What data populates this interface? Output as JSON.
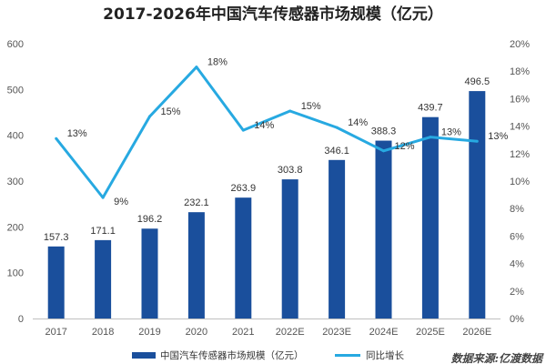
{
  "chart_data": {
    "type": "bar",
    "title": "2017-2026年中国汽车传感器市场规模（亿元）",
    "categories": [
      "2017",
      "2018",
      "2019",
      "2020",
      "2021",
      "2022E",
      "2023E",
      "2024E",
      "2025E",
      "2026E"
    ],
    "series": [
      {
        "name": "中国汽车传感器市场规模（亿元）",
        "type": "bar",
        "axis": "left",
        "values": [
          157.3,
          171.1,
          196.2,
          232.1,
          263.9,
          303.8,
          346.1,
          388.3,
          439.7,
          496.5
        ],
        "labels": [
          "157.3",
          "171.1",
          "196.2",
          "232.1",
          "263.9",
          "303.8",
          "346.1",
          "388.3",
          "439.7",
          "496.5"
        ]
      },
      {
        "name": "同比增长",
        "type": "line",
        "axis": "right",
        "values": [
          13.1,
          8.8,
          14.7,
          18.3,
          13.7,
          15.1,
          13.9,
          12.2,
          13.2,
          12.9
        ],
        "labels": [
          "13%",
          "9%",
          "15%",
          "18%",
          "14%",
          "15%",
          "14%",
          "12%",
          "13%",
          "13%"
        ]
      }
    ],
    "y_left": {
      "min": 0,
      "max": 600,
      "ticks": [
        "0",
        "100",
        "200",
        "300",
        "400",
        "500",
        "600"
      ]
    },
    "y_right": {
      "min": 0,
      "max": 20,
      "ticks": [
        "0%",
        "2%",
        "4%",
        "6%",
        "8%",
        "10%",
        "12%",
        "14%",
        "16%",
        "18%",
        "20%"
      ]
    },
    "grid": false,
    "legend_position": "bottom",
    "colors": {
      "bar": "#1a4f9c",
      "line": "#27a9e1"
    }
  },
  "source": "数据来源:亿渡数据"
}
